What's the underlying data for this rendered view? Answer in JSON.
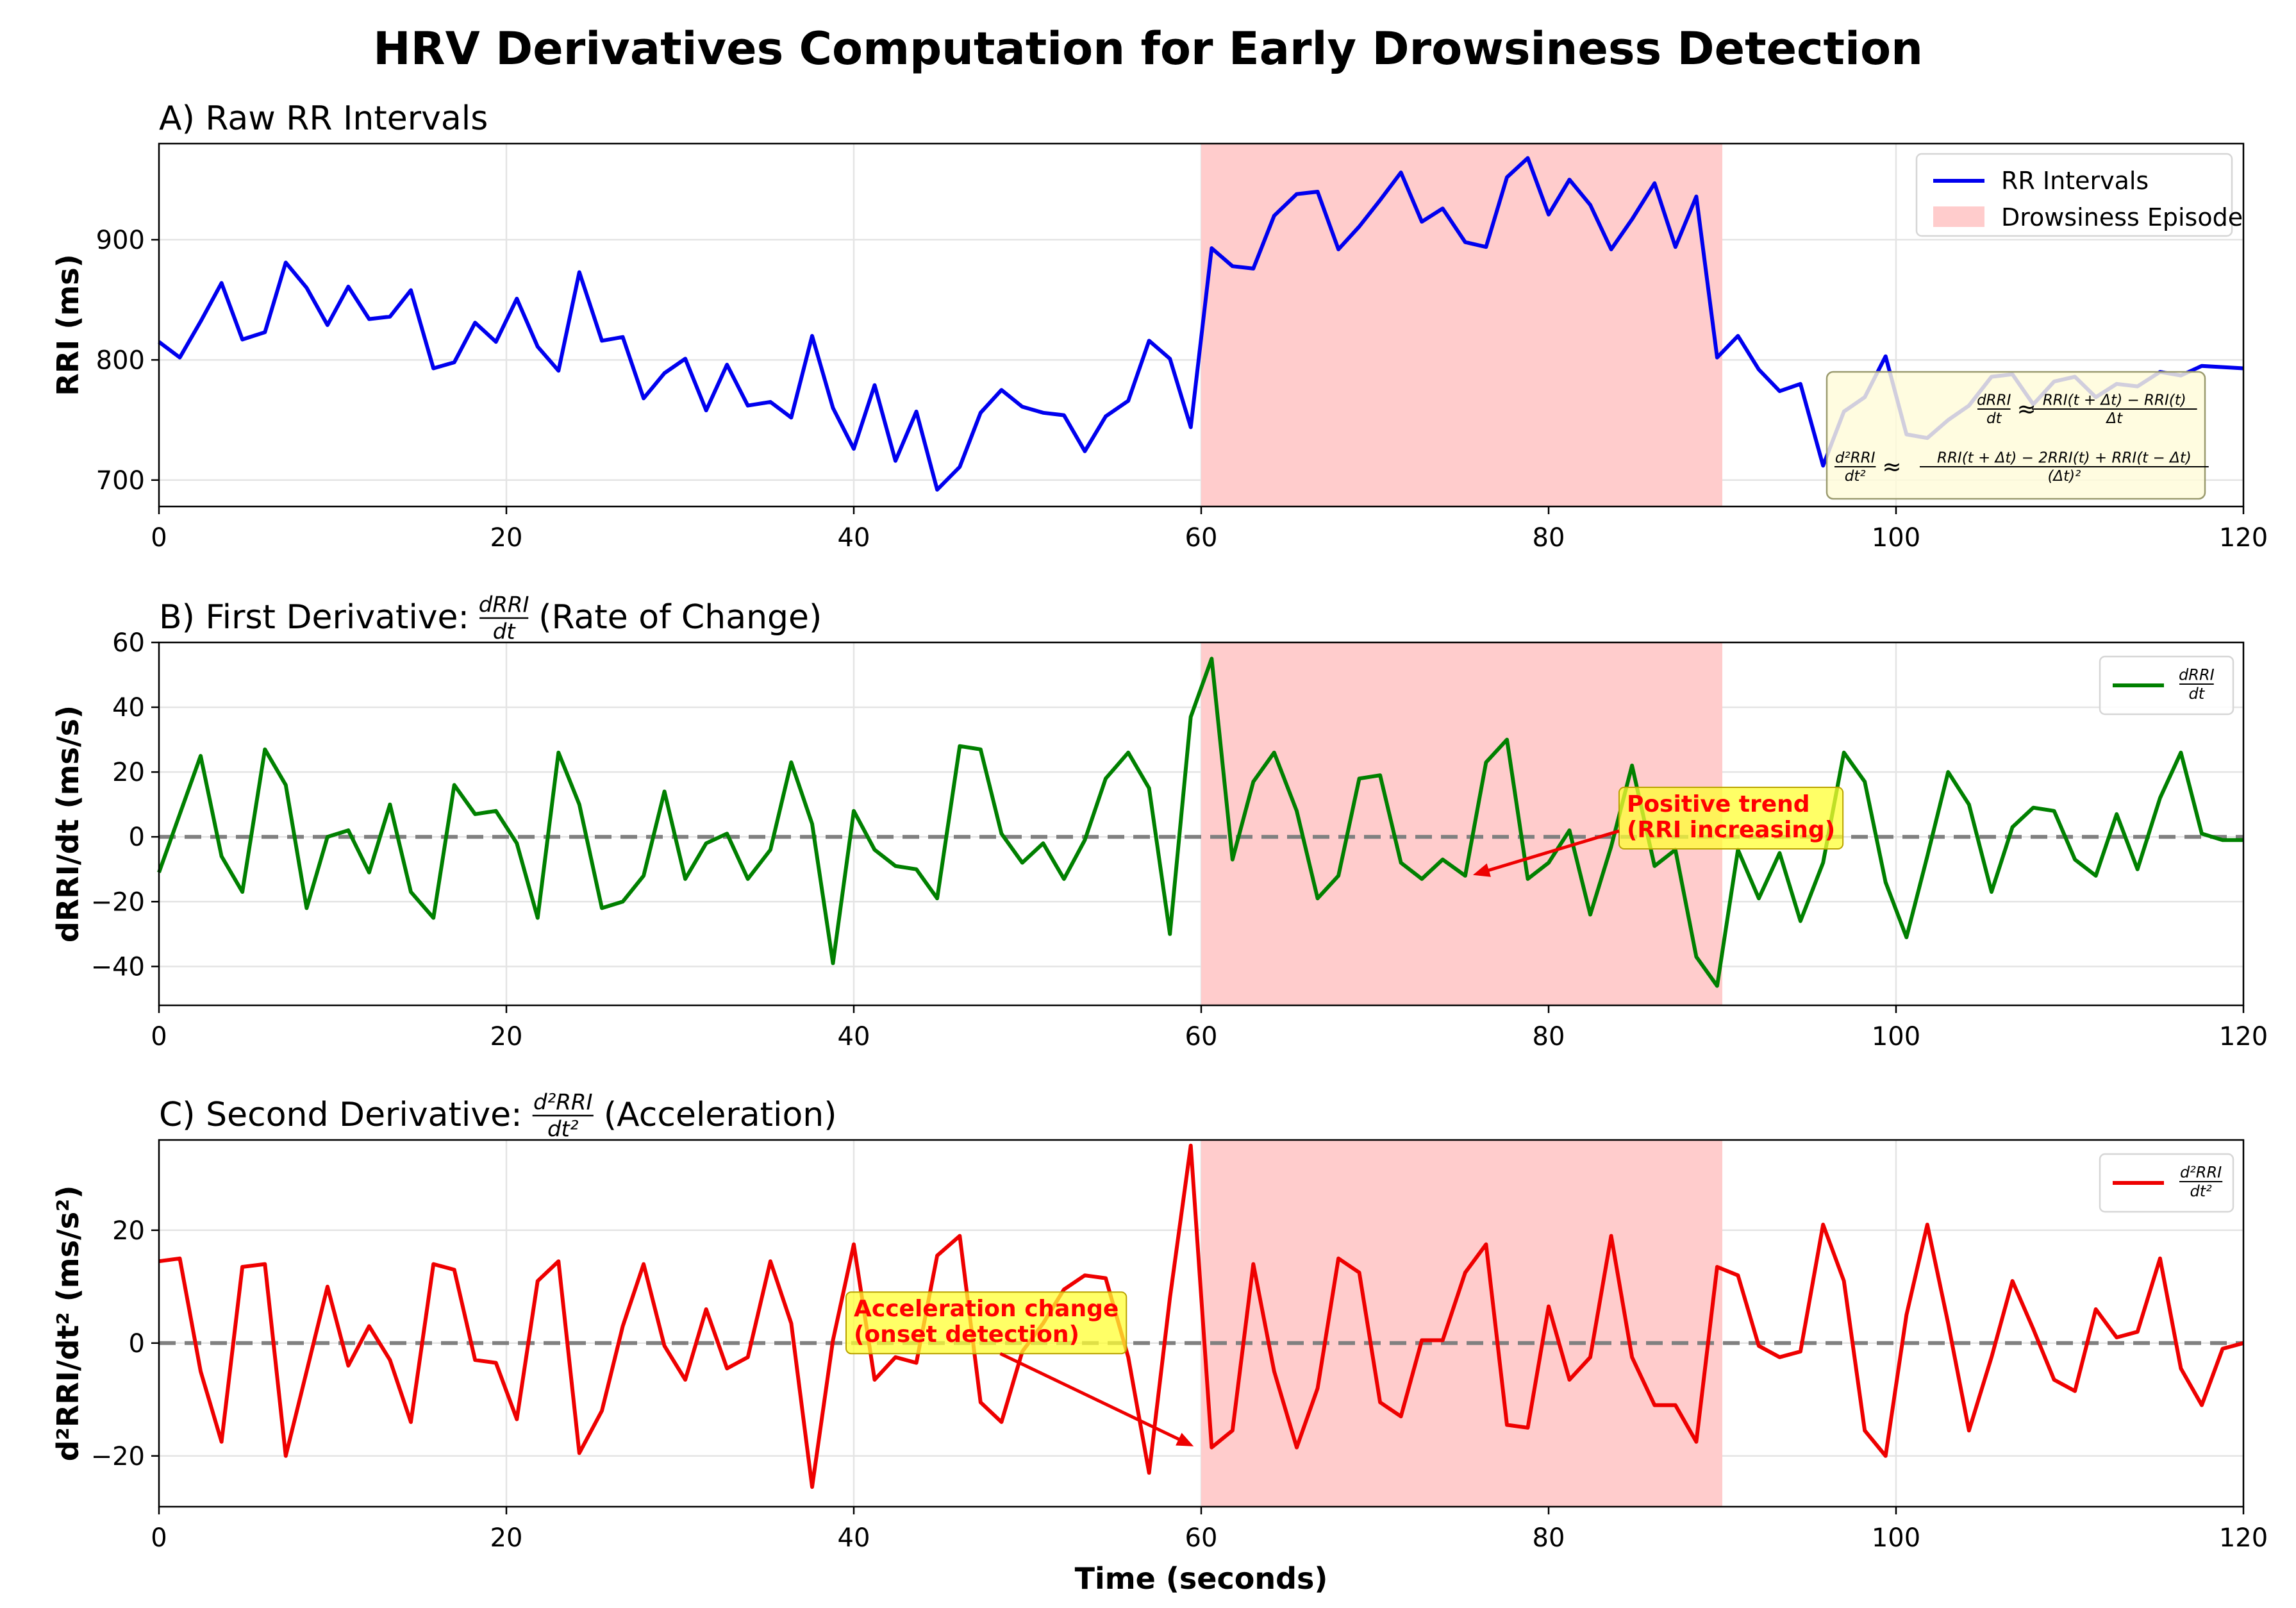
{
  "title": "HRV Derivatives Computation for Early Drowsiness Detection",
  "chart_data": [
    {
      "type": "line",
      "panel": "A",
      "title": "A) Raw RR Intervals",
      "xlabel": "",
      "ylabel": "RRI (ms)",
      "xlim": [
        0,
        120
      ],
      "ylim": [
        678,
        980
      ],
      "xticks": [
        0,
        20,
        40,
        60,
        80,
        100,
        120
      ],
      "yticks": [
        700,
        800,
        900
      ],
      "grid": true,
      "legend": "top-right",
      "shaded_region": {
        "x0": 60,
        "x1": 90,
        "name": "Drowsiness Episode",
        "color": "#ffcccc"
      },
      "formula_box": {
        "first": {
          "lhs_num": "dRRI",
          "lhs_den": "dt",
          "rel": "≈",
          "rhs_num": "RRI(t + Δt) − RRI(t)",
          "rhs_den": "Δt"
        },
        "second": {
          "lhs_num": "d²RRI",
          "lhs_den": "dt²",
          "rel": "≈",
          "rhs_num": "RRI(t + Δt) − 2RRI(t) + RRI(t − Δt)",
          "rhs_den": "(Δt)²"
        }
      },
      "series": [
        {
          "name": "RR Intervals",
          "color": "#0000ee",
          "x": [
            0,
            1.2,
            2.4,
            3.6,
            4.8,
            6.1,
            7.3,
            8.5,
            9.7,
            10.9,
            12.1,
            13.3,
            14.5,
            15.8,
            17,
            18.2,
            19.4,
            20.6,
            21.8,
            23,
            24.2,
            25.5,
            26.7,
            27.9,
            29.1,
            30.3,
            31.5,
            32.7,
            33.9,
            35.2,
            36.4,
            37.6,
            38.8,
            40,
            41.2,
            42.4,
            43.6,
            44.8,
            46.1,
            47.3,
            48.5,
            49.7,
            50.9,
            52.1,
            53.3,
            54.5,
            55.8,
            57,
            58.2,
            59.4,
            60.6,
            61.8,
            63,
            64.2,
            65.5,
            66.7,
            67.9,
            69.1,
            70.3,
            71.5,
            72.7,
            73.9,
            75.2,
            76.4,
            77.6,
            78.8,
            80,
            81.2,
            82.4,
            83.6,
            84.8,
            86.1,
            87.3,
            88.5,
            89.7,
            90.9,
            92.1,
            93.3,
            94.5,
            95.8,
            97,
            98.2,
            99.4,
            100.6,
            101.8,
            103,
            104.2,
            105.5,
            106.7,
            107.9,
            109.1,
            110.3,
            111.5,
            112.7,
            113.9,
            115.2,
            116.4,
            117.6,
            118.8,
            120
          ],
          "y": [
            815,
            802,
            832,
            864,
            817,
            823,
            881,
            860,
            829,
            861,
            834,
            836,
            858,
            793,
            798,
            831,
            815,
            851,
            811,
            791,
            873,
            816,
            819,
            768,
            789,
            801,
            758,
            796,
            762,
            765,
            752,
            820,
            760,
            726,
            779,
            716,
            757,
            692,
            711,
            756,
            775,
            761,
            756,
            754,
            724,
            753,
            766,
            816,
            801,
            744,
            893,
            878,
            876,
            920,
            938,
            940,
            892,
            911,
            933,
            956,
            915,
            926,
            898,
            894,
            952,
            968,
            921,
            950,
            929,
            892,
            917,
            947,
            894,
            936,
            802,
            820,
            792,
            774,
            780,
            712,
            757,
            769,
            803,
            738,
            735,
            750,
            762,
            786,
            788,
            763,
            782,
            786,
            769,
            780,
            778,
            790,
            787,
            795,
            794,
            793
          ]
        }
      ]
    },
    {
      "type": "line",
      "panel": "B",
      "title_prefix": "B) First Derivative:",
      "title_frac_num": "dRRI",
      "title_frac_den": "dt",
      "title_suffix": "(Rate of Change)",
      "xlabel": "",
      "ylabel": "dRRI/dt (ms/s)",
      "xlim": [
        0,
        120
      ],
      "ylim": [
        -52,
        60
      ],
      "xticks": [
        0,
        20,
        40,
        60,
        80,
        100,
        120
      ],
      "yticks": [
        -40,
        -20,
        0,
        20,
        40,
        60
      ],
      "grid": true,
      "legend": "top-right",
      "reference_line": {
        "y": 0,
        "style": "dashed",
        "color": "#808080"
      },
      "shaded_region": {
        "x0": 60,
        "x1": 90,
        "color": "#ffcccc"
      },
      "annotation": {
        "line1": "Positive trend",
        "line2": "(RRI increasing)",
        "text_x": 84.5,
        "text_y": 3,
        "arrow_x": 75.5,
        "arrow_y": -12
      },
      "series": [
        {
          "name_num": "dRRI",
          "name_den": "dt",
          "color": "#008000",
          "x": [
            0,
            1.2,
            2.4,
            3.6,
            4.8,
            6.1,
            7.3,
            8.5,
            9.7,
            10.9,
            12.1,
            13.3,
            14.5,
            15.8,
            17,
            18.2,
            19.4,
            20.6,
            21.8,
            23,
            24.2,
            25.5,
            26.7,
            27.9,
            29.1,
            30.3,
            31.5,
            32.7,
            33.9,
            35.2,
            36.4,
            37.6,
            38.8,
            40,
            41.2,
            42.4,
            43.6,
            44.8,
            46.1,
            47.3,
            48.5,
            49.7,
            50.9,
            52.1,
            53.3,
            54.5,
            55.8,
            57,
            58.2,
            59.4,
            60.6,
            61.8,
            63,
            64.2,
            65.5,
            66.7,
            67.9,
            69.1,
            70.3,
            71.5,
            72.7,
            73.9,
            75.2,
            76.4,
            77.6,
            78.8,
            80,
            81.2,
            82.4,
            83.6,
            84.8,
            86.1,
            87.3,
            88.5,
            89.7,
            90.9,
            92.1,
            93.3,
            94.5,
            95.8,
            97,
            98.2,
            99.4,
            100.6,
            101.8,
            103,
            104.2,
            105.5,
            106.7,
            107.9,
            109.1,
            110.3,
            111.5,
            112.7,
            113.9,
            115.2,
            116.4,
            117.6,
            118.8,
            120
          ],
          "y": [
            -11,
            7,
            25,
            -6,
            -17,
            27,
            16,
            -22,
            0,
            2,
            -11,
            10,
            -17,
            -25,
            16,
            7,
            8,
            -2,
            -25,
            26,
            10,
            -22,
            -20,
            -12,
            14,
            -13,
            -2,
            1,
            -13,
            -4,
            23,
            4,
            -39,
            8,
            -4,
            -9,
            -10,
            -19,
            28,
            27,
            1,
            -8,
            -2,
            -13,
            -1,
            18,
            26,
            15,
            -30,
            37,
            55,
            -7,
            17,
            26,
            8,
            -19,
            -12,
            18,
            19,
            -8,
            -13,
            -7,
            -12,
            23,
            30,
            -13,
            -8,
            2,
            -24,
            -3,
            22,
            -9,
            -4,
            -37,
            -46,
            -4,
            -19,
            -5,
            -26,
            -8,
            26,
            17,
            -14,
            -31,
            -6,
            20,
            10,
            -17,
            3,
            9,
            8,
            -7,
            -12,
            7,
            -10,
            12,
            26,
            1,
            -1,
            -1
          ]
        }
      ]
    },
    {
      "type": "line",
      "panel": "C",
      "title_prefix": "C) Second Derivative:",
      "title_frac_num": "d²RRI",
      "title_frac_den": "dt²",
      "title_suffix": "(Acceleration)",
      "xlabel": "Time (seconds)",
      "ylabel": "d²RRI/dt² (ms/s²)",
      "xlim": [
        0,
        120
      ],
      "ylim": [
        -29,
        36
      ],
      "xticks": [
        0,
        20,
        40,
        60,
        80,
        100,
        120
      ],
      "yticks": [
        -20,
        0,
        20
      ],
      "grid": true,
      "legend": "top-right",
      "reference_line": {
        "y": 0,
        "style": "dashed",
        "color": "#808080"
      },
      "shaded_region": {
        "x0": 60,
        "x1": 90,
        "color": "#ffcccc"
      },
      "annotation": {
        "line1": "Acceleration change",
        "line2": "(onset detection)",
        "text_x": 40,
        "text_y": 2,
        "arrow_x": 59.7,
        "arrow_y": -18.5
      },
      "series": [
        {
          "name_num": "d²RRI",
          "name_den": "dt²",
          "color": "#ee0000",
          "x": [
            0,
            1.2,
            2.4,
            3.6,
            4.8,
            6.1,
            7.3,
            8.5,
            9.7,
            10.9,
            12.1,
            13.3,
            14.5,
            15.8,
            17,
            18.2,
            19.4,
            20.6,
            21.8,
            23,
            24.2,
            25.5,
            26.7,
            27.9,
            29.1,
            30.3,
            31.5,
            32.7,
            33.9,
            35.2,
            36.4,
            37.6,
            38.8,
            40,
            41.2,
            42.4,
            43.6,
            44.8,
            46.1,
            47.3,
            48.5,
            49.7,
            50.9,
            52.1,
            53.3,
            54.5,
            55.8,
            57,
            58.2,
            59.4,
            60.6,
            61.8,
            63,
            64.2,
            65.5,
            66.7,
            67.9,
            69.1,
            70.3,
            71.5,
            72.7,
            73.9,
            75.2,
            76.4,
            77.6,
            78.8,
            80,
            81.2,
            82.4,
            83.6,
            84.8,
            86.1,
            87.3,
            88.5,
            89.7,
            90.9,
            92.1,
            93.3,
            94.5,
            95.8,
            97,
            98.2,
            99.4,
            100.6,
            101.8,
            103,
            104.2,
            105.5,
            106.7,
            107.9,
            109.1,
            110.3,
            111.5,
            112.7,
            113.9,
            115.2,
            116.4,
            117.6,
            118.8,
            120
          ],
          "y": [
            14.5,
            15,
            -5,
            -17.5,
            13.5,
            14,
            -20,
            -5,
            10,
            -4,
            3,
            -3,
            -14,
            14,
            13,
            -3,
            -3.5,
            -13.5,
            11,
            14.5,
            -19.5,
            -12,
            3,
            14,
            -0.5,
            -6.5,
            6,
            -4.5,
            -2.5,
            14.5,
            3.5,
            -25.5,
            0.5,
            17.5,
            -6.5,
            -2.5,
            -3.5,
            15.5,
            19,
            -10.5,
            -14,
            -1.5,
            3.5,
            9.5,
            12,
            11.5,
            -2.5,
            -23,
            8,
            35,
            -18.5,
            -15.5,
            14,
            -5,
            -18.5,
            -8,
            15,
            12.5,
            -10.5,
            -13,
            0.5,
            0.5,
            12.5,
            17.5,
            -14.5,
            -15,
            6.5,
            -6.5,
            -2.5,
            19,
            -2.5,
            -11,
            -11,
            -17.5,
            13.5,
            12,
            -0.5,
            -2.5,
            -1.5,
            21,
            11,
            -15.5,
            -20,
            5,
            21,
            3.5,
            -15.5,
            -2.5,
            11,
            2.5,
            -6.5,
            -8.5,
            6,
            1,
            2,
            15,
            -4.5,
            -11,
            -1,
            0
          ]
        }
      ]
    }
  ]
}
